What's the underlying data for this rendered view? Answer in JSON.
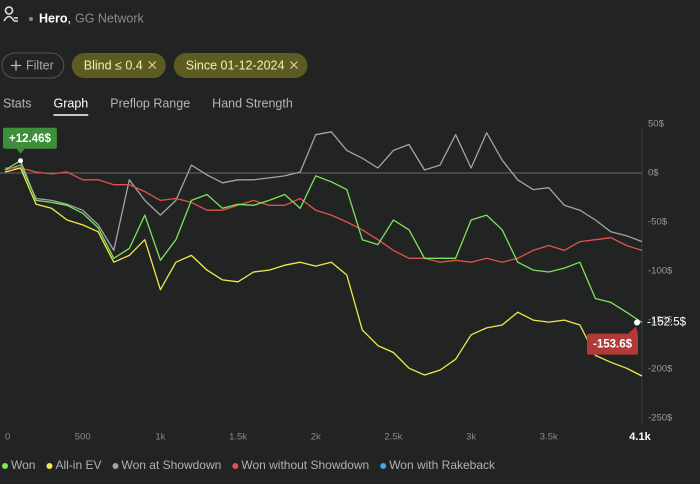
{
  "header": {
    "user": "Hero",
    "separator": ",",
    "network": "GG Network"
  },
  "filters": [
    "Filter",
    "Blind ≤ 0.4",
    "Since 01-12-2024"
  ],
  "tabs": [
    "Stats",
    "Graph",
    "Preflop Range",
    "Hand Strength"
  ],
  "active_tab": 1,
  "chart_data": {
    "type": "line",
    "x": [
      0,
      100,
      200,
      300,
      400,
      500,
      600,
      700,
      800,
      900,
      1000,
      1100,
      1200,
      1300,
      1400,
      1500,
      1600,
      1700,
      1800,
      1900,
      2000,
      2100,
      2200,
      2300,
      2400,
      2500,
      2600,
      2700,
      2800,
      2900,
      3000,
      3100,
      3200,
      3300,
      3400,
      3500,
      3600,
      3700,
      3800,
      3900,
      4000,
      4100
    ],
    "xlim": [
      0,
      4100
    ],
    "xticks": [
      0,
      500,
      {
        "value": 1000,
        "label": "1k"
      },
      {
        "value": 1500,
        "label": "1.5k"
      },
      {
        "value": 2000,
        "label": "2k"
      },
      {
        "value": 2500,
        "label": "2.5k"
      },
      {
        "value": 3000,
        "label": "3k"
      },
      {
        "value": 3500,
        "label": "3.5k"
      },
      {
        "value": 4100,
        "label": "4.1k"
      }
    ],
    "ylim": [
      -260,
      55
    ],
    "yticks": [
      {
        "value": 50,
        "label": "50$"
      },
      {
        "value": 0,
        "label": "0$"
      },
      {
        "value": -50,
        "label": "-50$"
      },
      {
        "value": -100,
        "label": "-100$"
      },
      {
        "value": -150,
        "label": "-150$"
      },
      {
        "value": -200,
        "label": "-200$"
      },
      {
        "value": -250,
        "label": "-250$"
      }
    ],
    "zero_line": true,
    "series": [
      {
        "name": "Won",
        "color": "#7ee35c",
        "values": [
          3,
          12.46,
          -28,
          -30,
          -33,
          -41,
          -56,
          -87,
          -77,
          -43,
          -89,
          -68,
          -28,
          -22,
          -36,
          -32,
          -33,
          -28,
          -22,
          -36,
          -3,
          -9,
          -17,
          -68,
          -73,
          -48,
          -58,
          -87,
          -87,
          -87,
          -48,
          -43,
          -58,
          -91,
          -99,
          -101,
          -97,
          -91,
          -128,
          -132,
          -142,
          -152.5
        ]
      },
      {
        "name": "All-in EV",
        "color": "#f0ea4a",
        "values": [
          1,
          5,
          -32,
          -36,
          -48,
          -53,
          -60,
          -91,
          -84,
          -68,
          -119,
          -91,
          -84,
          -99,
          -109,
          -111,
          -101,
          -99,
          -94,
          -91,
          -95,
          -91,
          -104,
          -160,
          -176,
          -183,
          -199,
          -206,
          -201,
          -190,
          -165,
          -158,
          -155,
          -142,
          -150,
          -152,
          -150,
          -155,
          -186,
          -193,
          -199,
          -207
        ]
      },
      {
        "name": "Won at Showdown",
        "color": "#a3a3a3",
        "values": [
          3,
          8,
          -26,
          -28,
          -32,
          -38,
          -53,
          -79,
          -7,
          -28,
          -43,
          -28,
          8,
          -2,
          -10,
          -7,
          -7,
          -5,
          -3,
          1,
          39,
          42,
          23,
          15,
          5,
          23,
          29,
          3,
          8,
          39,
          5,
          41,
          13,
          -7,
          -17,
          -15,
          -33,
          -38,
          -48,
          -60,
          -64,
          -70
        ]
      },
      {
        "name": "Won without Showdown",
        "color": "#e2524c",
        "values": [
          5,
          5,
          1,
          -1,
          1,
          -7,
          -7,
          -12,
          -12,
          -19,
          -28,
          -26,
          -30,
          -38,
          -38,
          -33,
          -28,
          -33,
          -33,
          -26,
          -38,
          -43,
          -50,
          -58,
          -68,
          -79,
          -87,
          -87,
          -91,
          -89,
          -91,
          -87,
          -91,
          -87,
          -79,
          -74,
          -79,
          -70,
          -68,
          -66,
          -74,
          -79
        ]
      },
      {
        "name": "Won with Rakeback",
        "color": "#3ea8e6",
        "values": [
          null,
          null,
          null,
          null,
          null,
          null,
          null,
          null,
          null,
          null,
          null,
          null,
          null,
          null,
          null,
          null,
          null,
          null,
          null,
          null,
          null,
          null,
          null,
          null,
          null,
          null,
          null,
          null,
          null,
          null,
          null,
          null,
          null,
          null,
          null,
          null,
          null,
          null,
          null,
          null,
          null,
          null
        ]
      }
    ],
    "annotations": [
      {
        "text": "+12.46$",
        "x": 100,
        "y": 12.46,
        "color": "#3f8f3a",
        "placement": "above"
      },
      {
        "text": "-152.5$",
        "x": 4100,
        "y": -152.5,
        "color": "#ffffff",
        "placement": "right"
      },
      {
        "text": "-153.6$",
        "x": 4100,
        "y": -153.6,
        "color": "#b13a36",
        "placement": "below-left"
      }
    ]
  }
}
